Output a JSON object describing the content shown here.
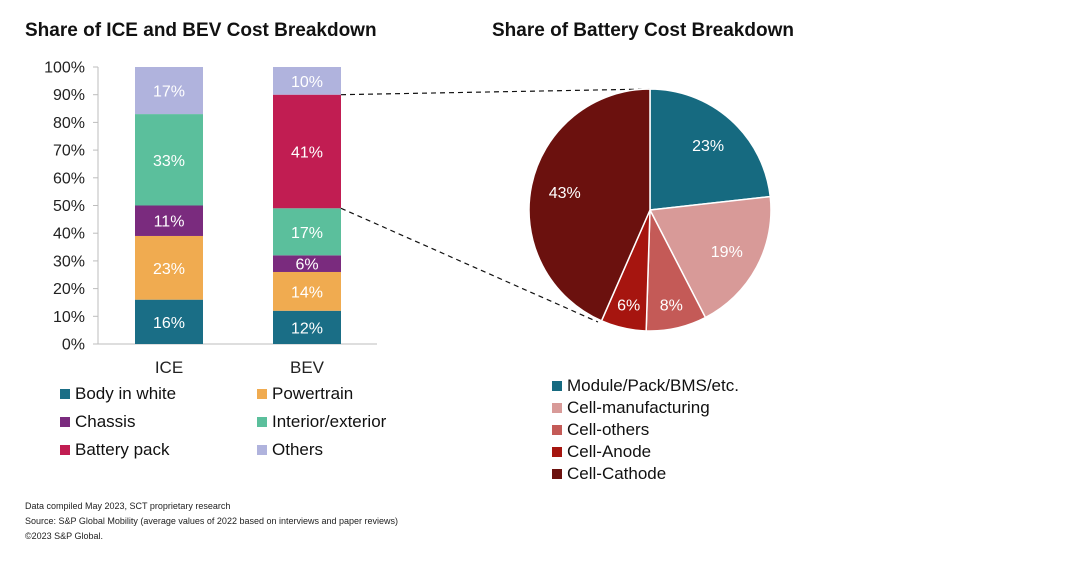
{
  "chart_data": [
    {
      "type": "bar",
      "stacked": true,
      "title": "Share of ICE and BEV Cost Breakdown",
      "categories": [
        "ICE",
        "BEV"
      ],
      "y_ticks": [
        "0%",
        "10%",
        "20%",
        "30%",
        "40%",
        "50%",
        "60%",
        "70%",
        "80%",
        "90%",
        "100%"
      ],
      "ylim": [
        0,
        100
      ],
      "series": [
        {
          "name": "Body in white",
          "color": "#1a6e86",
          "values": [
            16,
            12
          ],
          "labels": [
            "16%",
            "12%"
          ]
        },
        {
          "name": "Powertrain",
          "color": "#f0ab50",
          "values": [
            23,
            14
          ],
          "labels": [
            "23%",
            "14%"
          ]
        },
        {
          "name": "Chassis",
          "color": "#7a2b7e",
          "values": [
            11,
            6
          ],
          "labels": [
            "11%",
            "6%"
          ]
        },
        {
          "name": "Interior/exterior",
          "color": "#5bbf9c",
          "values": [
            33,
            17
          ],
          "labels": [
            "33%",
            "17%"
          ]
        },
        {
          "name": "Battery pack",
          "color": "#c11d52",
          "values": [
            0,
            41
          ],
          "labels": [
            "",
            "41%"
          ]
        },
        {
          "name": "Others",
          "color": "#b0b3dd",
          "values": [
            17,
            10
          ],
          "labels": [
            "17%",
            "10%"
          ]
        }
      ],
      "legend": [
        "Body in white",
        "Powertrain",
        "Chassis",
        "Interior/exterior",
        "Battery pack",
        "Others"
      ],
      "legend_position": "bottom"
    },
    {
      "type": "pie",
      "title": "Share of Battery Cost Breakdown",
      "slices": [
        {
          "name": "Module/Pack/BMS/etc.",
          "value": 23,
          "label": "23%",
          "color": "#166a80"
        },
        {
          "name": "Cell-manufacturing",
          "value": 19,
          "label": "19%",
          "color": "#d89a98"
        },
        {
          "name": "Cell-others",
          "value": 8,
          "label": "8%",
          "color": "#c45a57"
        },
        {
          "name": "Cell-Anode",
          "value": 6,
          "label": "6%",
          "color": "#a6150f"
        },
        {
          "name": "Cell-Cathode",
          "value": 43,
          "label": "43%",
          "color": "#6b110e"
        }
      ],
      "start": "12 o'clock",
      "direction": "clockwise",
      "legend_position": "bottom"
    }
  ],
  "footnotes": [
    "Data compiled May 2023, SCT proprietary research",
    "Source: S&P Global Mobility (average values of 2022 based on interviews and paper reviews)",
    "©2023 S&P Global."
  ]
}
